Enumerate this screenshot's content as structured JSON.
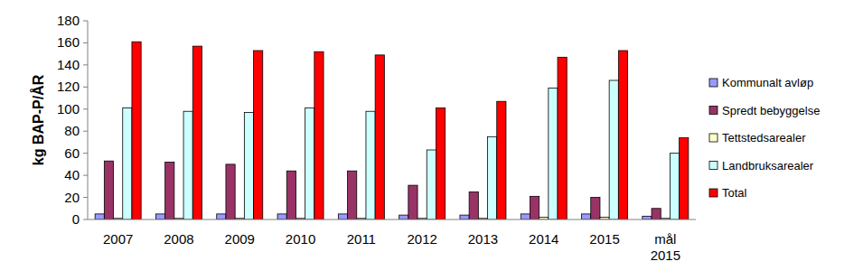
{
  "chart_data": {
    "type": "bar",
    "y_label": "kg BAP-P/ÅR",
    "categories": [
      "2007",
      "2008",
      "2009",
      "2010",
      "2011",
      "2012",
      "2013",
      "2014",
      "2015",
      "mål 2015"
    ],
    "series": [
      {
        "name": "Kommunalt avløp",
        "color": "#9999ff",
        "values": [
          5,
          5,
          5,
          5,
          5,
          4,
          4,
          5,
          5,
          3
        ]
      },
      {
        "name": "Spredt bebyggelse",
        "color": "#993366",
        "values": [
          53,
          52,
          50,
          44,
          44,
          31,
          25,
          21,
          20,
          10
        ]
      },
      {
        "name": "Tettstedsarealer",
        "color": "#ffffcc",
        "values": [
          1,
          1,
          1,
          1,
          1,
          1,
          1,
          2,
          2,
          1
        ]
      },
      {
        "name": "Landbruksarealer",
        "color": "#ccffff",
        "values": [
          101,
          98,
          97,
          101,
          98,
          63,
          75,
          119,
          126,
          60
        ]
      },
      {
        "name": "Total",
        "color": "#ff0000",
        "values": [
          161,
          157,
          153,
          152,
          149,
          101,
          107,
          147,
          153,
          74
        ]
      }
    ],
    "ylim": [
      0,
      180
    ],
    "yticks": [
      0,
      20,
      40,
      60,
      80,
      100,
      120,
      140,
      160,
      180
    ],
    "grid": false,
    "legend": "right"
  }
}
